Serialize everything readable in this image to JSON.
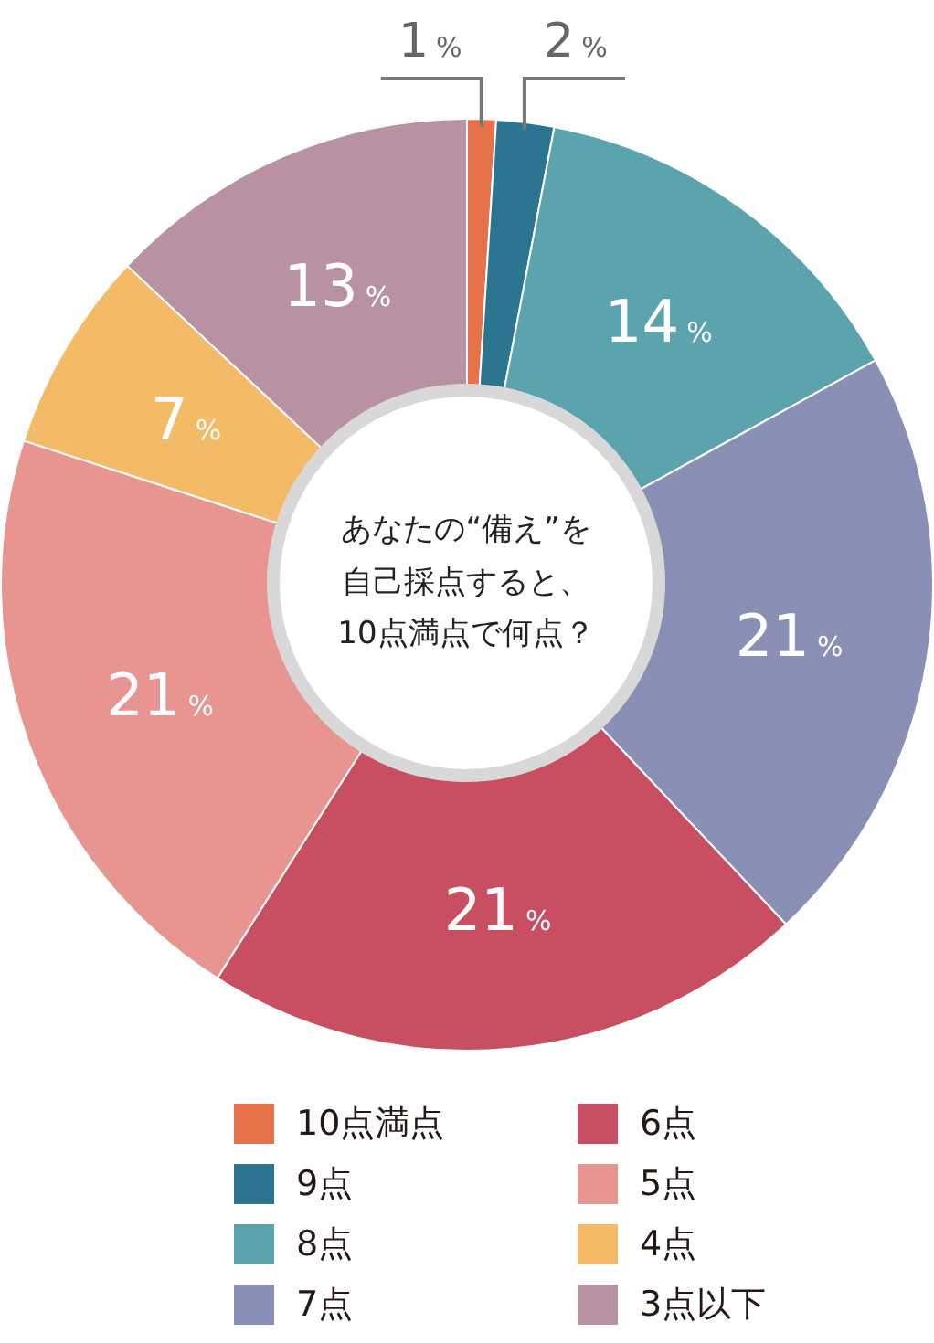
{
  "chart_data": {
    "type": "donut",
    "title": "あなたの“備え”を自己採点すると、10点満点で何点？",
    "categories": [
      "10点満点",
      "9点",
      "8点",
      "7点",
      "6点",
      "5点",
      "4点",
      "3点以下"
    ],
    "values": [
      1,
      2,
      14,
      21,
      21,
      21,
      7,
      13
    ],
    "colors": [
      "#e6724a",
      "#2b7590",
      "#5ca4ad",
      "#8a8fb5",
      "#c84e62",
      "#e89592",
      "#f3bb68",
      "#b892a2"
    ],
    "value_labels": [
      "1%",
      "2%",
      "14%",
      "21%",
      "21%",
      "21%",
      "7%",
      "13%"
    ],
    "legend": "bottom"
  }
}
